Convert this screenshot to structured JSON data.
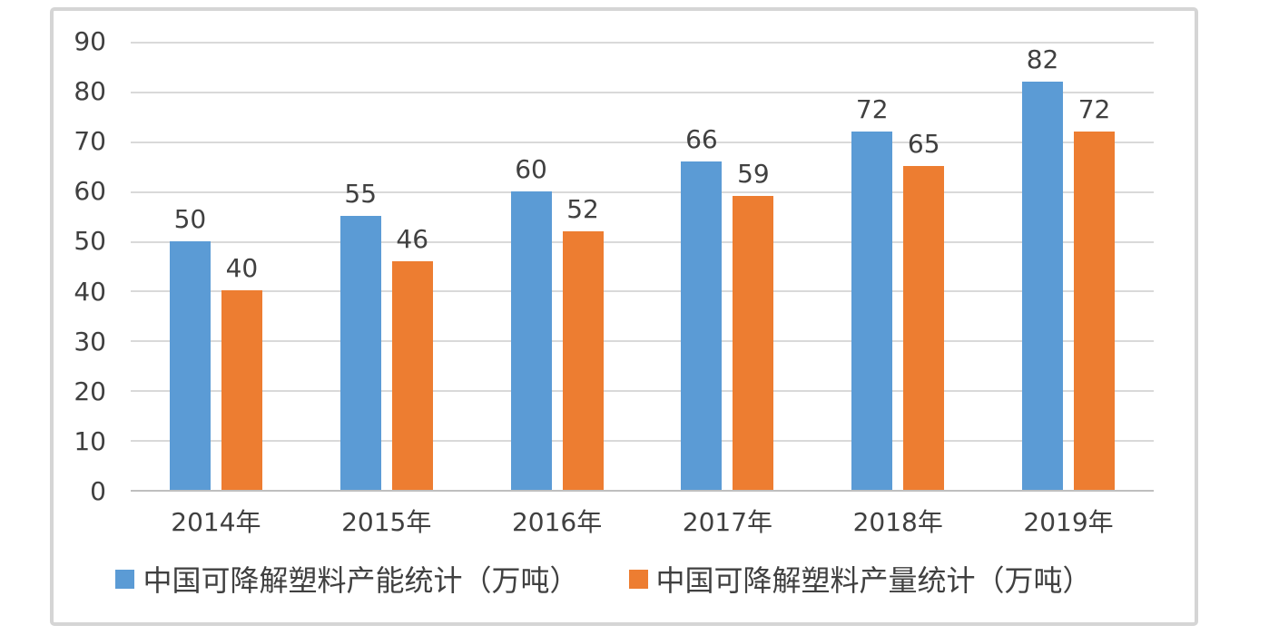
{
  "chart_data": {
    "type": "bar",
    "title": "",
    "xlabel": "",
    "ylabel": "",
    "categories": [
      "2014年",
      "2015年",
      "2016年",
      "2017年",
      "2018年",
      "2019年"
    ],
    "series": [
      {
        "key": "capacity",
        "name": "中国可降解塑料产能统计（万吨）",
        "color": "#5B9BD5",
        "values": [
          50,
          55,
          60,
          66,
          72,
          82
        ]
      },
      {
        "key": "output",
        "name": "中国可降解塑料产量统计（万吨）",
        "color": "#ED7D31",
        "values": [
          40,
          46,
          52,
          59,
          65,
          72
        ]
      }
    ],
    "ylim": [
      0,
      90
    ],
    "yticks": [
      0,
      10,
      20,
      30,
      40,
      50,
      60,
      70,
      80,
      90
    ],
    "grid": true,
    "data_labels": true,
    "legend_position": "bottom"
  },
  "colors": {
    "gridline": "#D9D9D9",
    "axis_line": "#BFBFBF",
    "text": "#404040",
    "frame_border": "#D5D5D5",
    "background": "#FFFFFF"
  }
}
